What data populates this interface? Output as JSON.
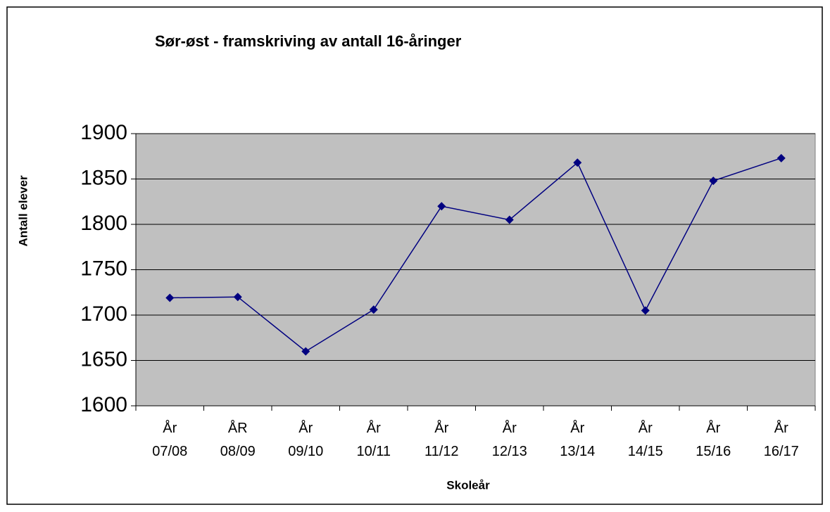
{
  "chart_data": {
    "type": "line",
    "title": "Sør-øst - framskriving av antall 16-åringer",
    "x_label": "Skoleår",
    "y_label": "Antall elever",
    "categories": [
      "År\n07/08",
      "ÅR\n08/09",
      "År\n09/10",
      "År\n10/11",
      "År\n11/12",
      "År\n12/13",
      "År\n13/14",
      "År\n14/15",
      "År\n15/16",
      "År\n16/17"
    ],
    "series": [
      {
        "name": "Antall 16-åringer",
        "color": "#000080",
        "values": [
          1719,
          1720,
          1660,
          1706,
          1820,
          1805,
          1868,
          1705,
          1848,
          1873
        ]
      }
    ],
    "ylim": [
      1600,
      1900
    ],
    "yticks": [
      1600,
      1650,
      1700,
      1750,
      1800,
      1850,
      1900
    ],
    "grid": true
  }
}
